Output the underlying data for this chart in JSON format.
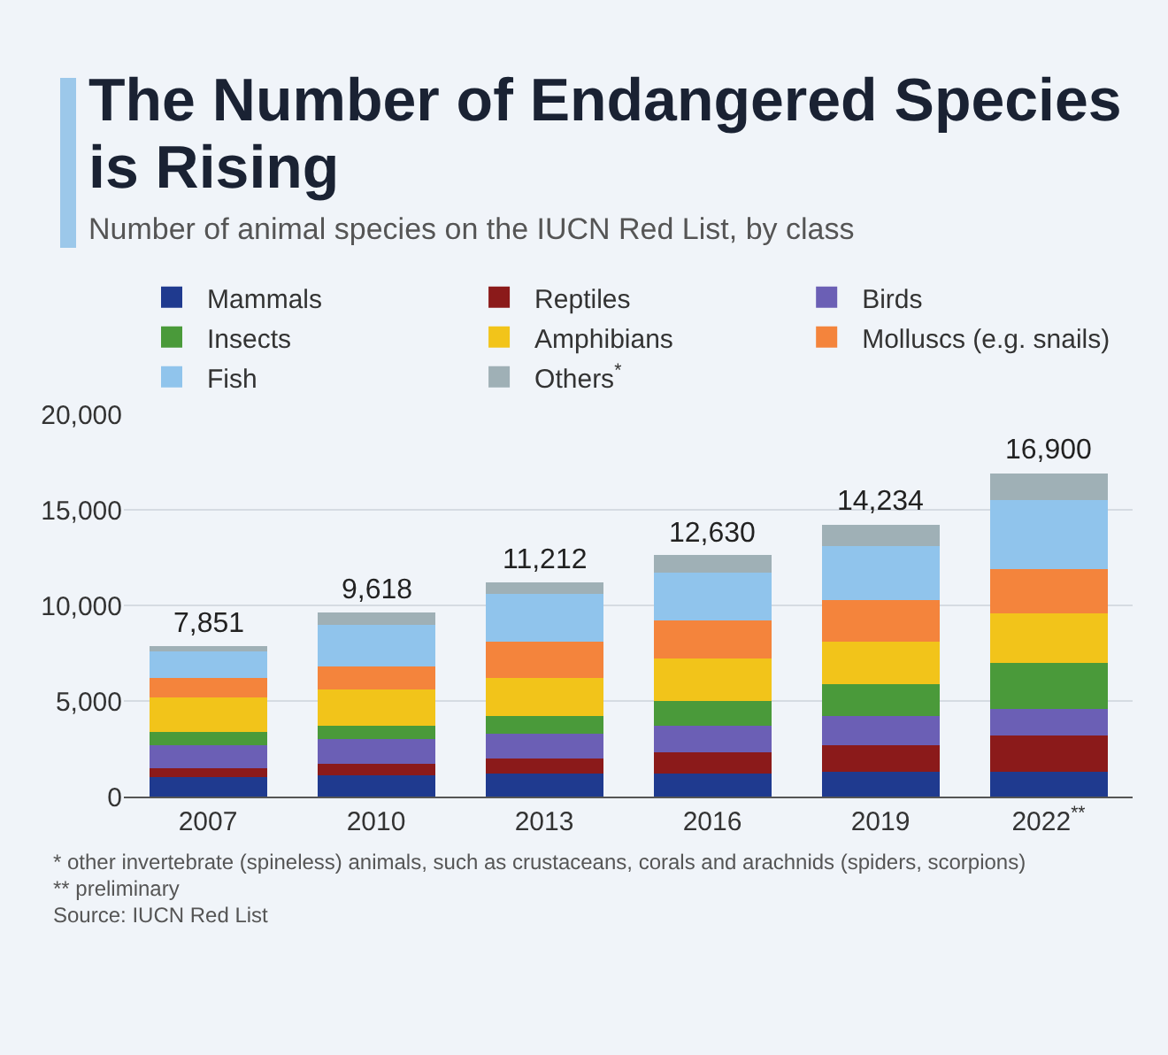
{
  "chart_data": {
    "type": "bar",
    "stacked": true,
    "title": "The Number of Endangered Species is Rising",
    "subtitle": "Number of animal species on the IUCN Red List, by class",
    "categories": [
      "2007",
      "2010",
      "2013",
      "2016",
      "2019",
      "2022$^{**}$"
    ],
    "series": [
      {
        "name": "Mammals",
        "color": "#1f3a8f",
        "values": [
          1000,
          1100,
          1200,
          1200,
          1300,
          1300
        ]
      },
      {
        "name": "Reptiles",
        "color": "#8b1a1a",
        "values": [
          500,
          600,
          800,
          1100,
          1400,
          1900
        ]
      },
      {
        "name": "Birds",
        "color": "#6b5fb5",
        "values": [
          1200,
          1300,
          1300,
          1400,
          1500,
          1400
        ]
      },
      {
        "name": "Insects",
        "color": "#4a9a3a",
        "values": [
          700,
          700,
          900,
          1300,
          1700,
          2400
        ]
      },
      {
        "name": "Amphibians",
        "color": "#f2c41a",
        "values": [
          1800,
          1900,
          2000,
          2200,
          2200,
          2600
        ]
      },
      {
        "name": "Molluscs (e.g. snails)",
        "color": "#f4843c",
        "values": [
          1000,
          1200,
          1900,
          2000,
          2200,
          2300
        ]
      },
      {
        "name": "Fish",
        "color": "#90c4ec",
        "values": [
          1400,
          2200,
          2500,
          2500,
          2800,
          3600
        ]
      },
      {
        "name": "Others$^{*}$",
        "color": "#9fb0b6",
        "values": [
          251,
          618,
          612,
          930,
          1134,
          1400
        ]
      }
    ],
    "totals": [
      "7,851",
      "9,618",
      "11,212",
      "12,630",
      "14,234",
      "16,900"
    ],
    "ylim": [
      0,
      20000
    ],
    "yticks": [
      0,
      {
        "value": 5000,
        "label": "5,000"
      },
      {
        "value": 10000,
        "label": "10,000"
      },
      {
        "value": 15000,
        "label": "15,000"
      },
      {
        "value": 20000,
        "label": "20,000"
      }
    ],
    "grid": "y",
    "legend": "top",
    "annotations": [
      "* other invertebrate (spineless) animals, such as crustaceans, corals and arachnids (spiders, scorpions)",
      "** preliminary",
      "Source: IUCN Red List"
    ]
  }
}
